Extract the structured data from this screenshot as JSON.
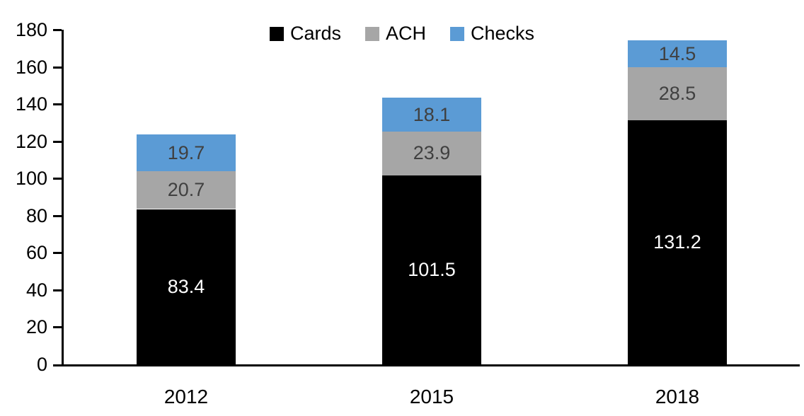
{
  "chart_data": {
    "type": "bar",
    "stacked": true,
    "title": "",
    "xlabel": "",
    "ylabel": "",
    "categories": [
      "2012",
      "2015",
      "2018"
    ],
    "series": [
      {
        "name": "Cards",
        "color": "#000000",
        "label_color": "#ffffff",
        "values": [
          83.4,
          101.5,
          131.2
        ]
      },
      {
        "name": "ACH",
        "color": "#a6a6a6",
        "label_color": "#404040",
        "values": [
          20.7,
          23.9,
          28.5
        ]
      },
      {
        "name": "Checks",
        "color": "#5b9bd5",
        "label_color": "#404040",
        "values": [
          19.7,
          18.1,
          14.5
        ]
      }
    ],
    "totals": [
      123.8,
      143.5,
      174.2
    ],
    "ylim": [
      0,
      180
    ],
    "yticks": [
      0,
      20,
      40,
      60,
      80,
      100,
      120,
      140,
      160,
      180
    ],
    "grid": false,
    "legend_position": "top-center",
    "legend_entries": [
      "Cards",
      "ACH",
      "Checks"
    ],
    "axis_color": "#000000",
    "background_color": "#ffffff"
  }
}
